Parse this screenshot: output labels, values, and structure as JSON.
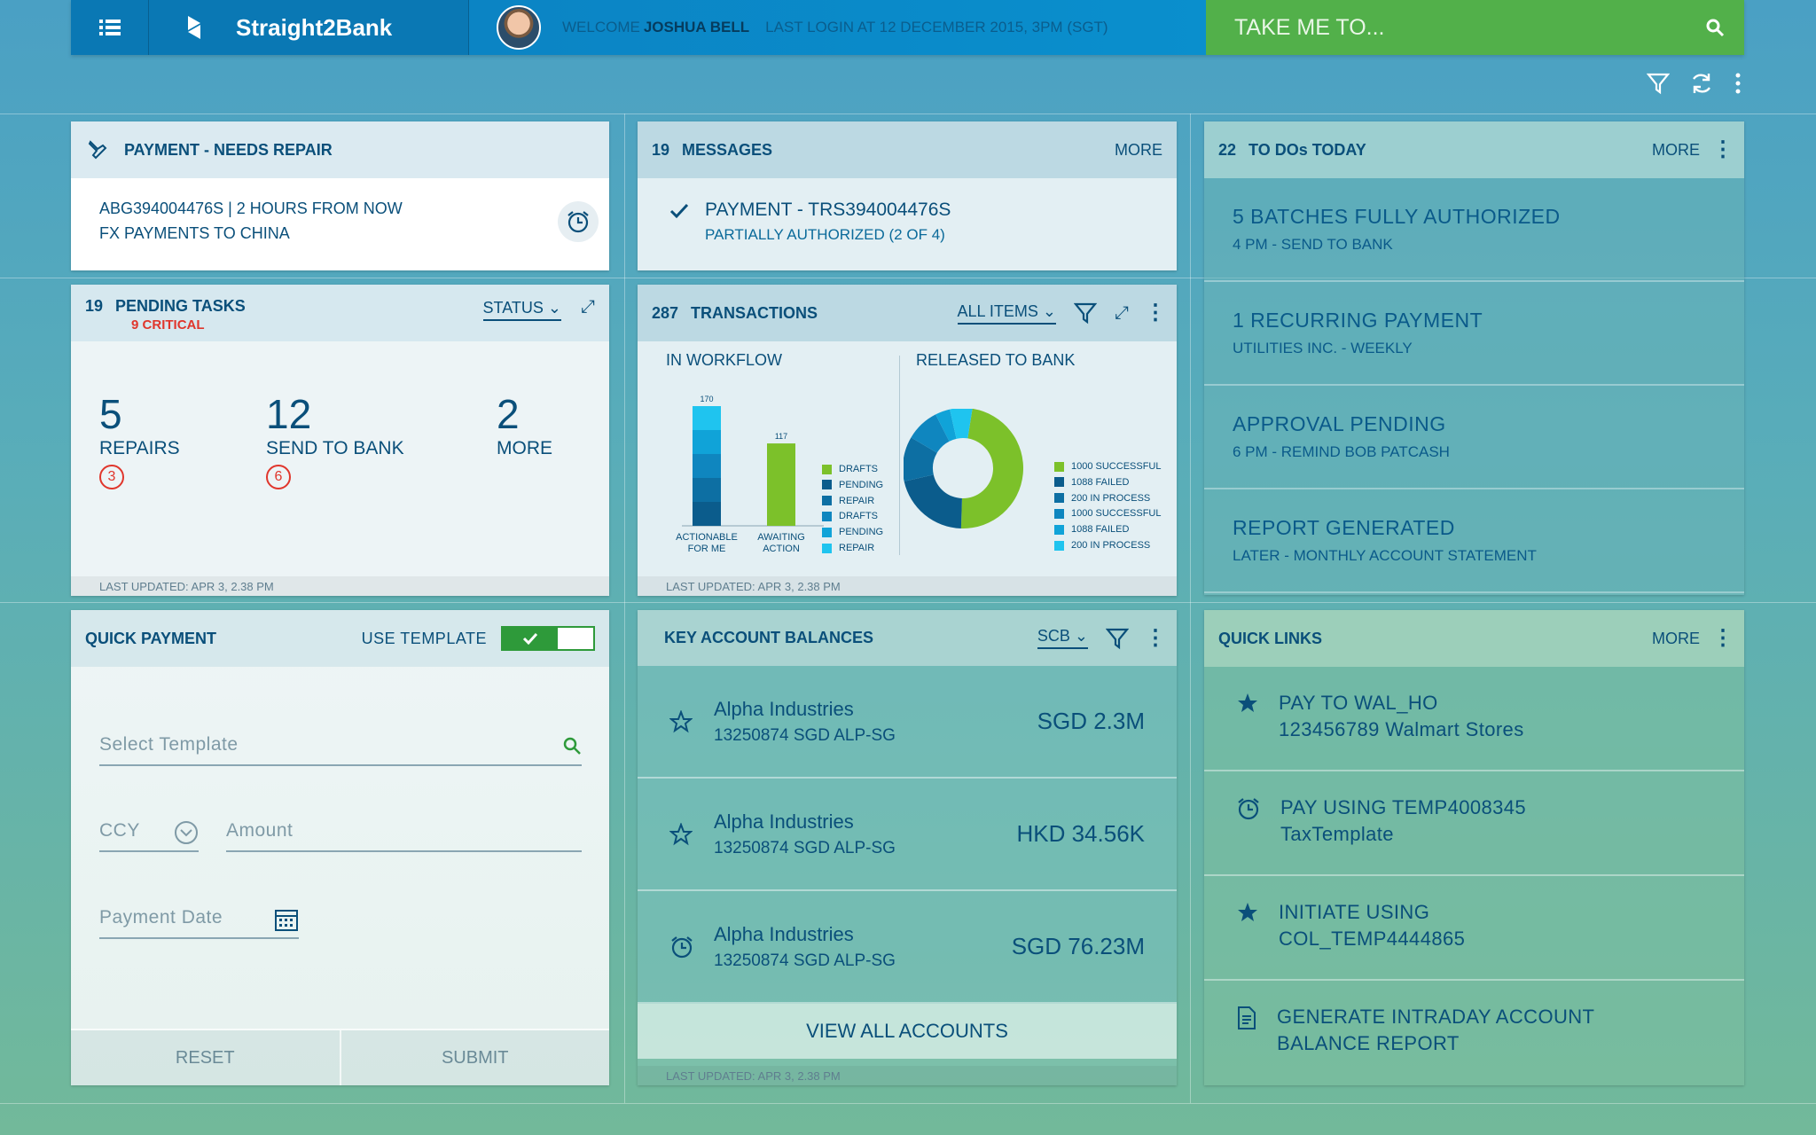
{
  "topbar": {
    "brand": "Straight2Bank",
    "welcome": "WELCOME",
    "user": "JOSHUA BELL",
    "last_login": "LAST LOGIN AT 12 DECEMBER 2015, 3PM (SGT)",
    "search_placeholder": "TAKE ME TO..."
  },
  "repair": {
    "title": "PAYMENT - NEEDS REPAIR",
    "line1": "ABG394004476S | 2 HOURS FROM NOW",
    "line2": "FX PAYMENTS TO CHINA"
  },
  "messages": {
    "count": "19",
    "title": "MESSAGES",
    "more": "MORE",
    "item_title": "PAYMENT - TRS394004476S",
    "item_sub": "PARTIALLY AUTHORIZED (2 OF 4)"
  },
  "todos": {
    "count": "22",
    "title": "TO DOs TODAY",
    "more": "MORE",
    "items": [
      {
        "t1": "5 BATCHES FULLY AUTHORIZED",
        "t2": "4 PM - SEND TO BANK"
      },
      {
        "t1": "1 RECURRING PAYMENT",
        "t2": "UTILITIES INC. - WEEKLY"
      },
      {
        "t1": "APPROVAL PENDING",
        "t2": "6 PM - REMIND BOB PATCASH"
      },
      {
        "t1": "REPORT GENERATED",
        "t2": "LATER - MONTHLY ACCOUNT STATEMENT"
      }
    ]
  },
  "pending": {
    "count": "19",
    "title": "PENDING TASKS",
    "critical": "9 CRITICAL",
    "status": "STATUS",
    "stats": [
      {
        "num": "5",
        "label": "REPAIRS",
        "badge": "3"
      },
      {
        "num": "12",
        "label": "SEND TO BANK",
        "badge": "6"
      },
      {
        "num": "2",
        "label": "MORE",
        "badge": ""
      }
    ],
    "updated": "LAST UPDATED: APR 3, 2.38 PM"
  },
  "transactions": {
    "count": "287",
    "title": "TRANSACTIONS",
    "filter": "ALL ITEMS",
    "workflow_title": "IN WORKFLOW",
    "released_title": "RELEASED TO BANK",
    "updated": "LAST UPDATED: APR 3, 2.38 PM"
  },
  "chart_data": [
    {
      "type": "bar",
      "title": "IN WORKFLOW",
      "categories": [
        "ACTIONABLE FOR ME",
        "AWAITING ACTION"
      ],
      "values": [
        170,
        117
      ],
      "data_labels": [
        "170",
        "117"
      ],
      "legend": [
        {
          "name": "DRAFTS",
          "color": "#7cc12a"
        },
        {
          "name": "PENDING",
          "color": "#0b5c8c"
        },
        {
          "name": "REPAIR",
          "color": "#0d6fa3"
        },
        {
          "name": "DRAFTS",
          "color": "#0f86bf"
        },
        {
          "name": "PENDING",
          "color": "#10a3d8"
        },
        {
          "name": "REPAIR",
          "color": "#1fc4ef"
        }
      ]
    },
    {
      "type": "pie",
      "title": "RELEASED TO BANK",
      "slices": [
        {
          "name": "1000 SUCCESSFUL",
          "value": 48,
          "color": "#7cc12a"
        },
        {
          "name": "1088 FAILED",
          "value": 21,
          "color": "#0b5c8c"
        },
        {
          "name": "200 IN PROCESS",
          "value": 12,
          "color": "#0d6fa3"
        },
        {
          "name": "1000 SUCCESSFUL",
          "value": 9,
          "color": "#0f86bf"
        },
        {
          "name": "1088 FAILED",
          "value": 4,
          "color": "#10a3d8"
        },
        {
          "name": "200 IN PROCESS",
          "value": 6,
          "color": "#1fc4ef"
        }
      ]
    }
  ],
  "quickpay": {
    "title": "QUICK PAYMENT",
    "use_template": "USE TEMPLATE",
    "select_template": "Select Template",
    "ccy": "CCY",
    "amount": "Amount",
    "date": "Payment Date",
    "reset": "RESET",
    "submit": "SUBMIT"
  },
  "balances": {
    "title": "KEY ACCOUNT BALANCES",
    "bank": "SCB",
    "rows": [
      {
        "name": "Alpha Industries",
        "acc": "13250874 SGD ALP-SG",
        "amt": "SGD 2.3M",
        "icon": "star-outline-icon"
      },
      {
        "name": "Alpha Industries",
        "acc": "13250874 SGD ALP-SG",
        "amt": "HKD 34.56K",
        "icon": "star-outline-icon"
      },
      {
        "name": "Alpha Industries",
        "acc": "13250874 SGD ALP-SG",
        "amt": "SGD 76.23M",
        "icon": "alarm-icon"
      }
    ],
    "view_all": "VIEW ALL ACCOUNTS",
    "updated": "LAST UPDATED: APR 3, 2.38 PM"
  },
  "quicklinks": {
    "title": "QUICK LINKS",
    "more": "MORE",
    "items": [
      {
        "l1": "PAY TO WAL_HO",
        "l2": "123456789 Walmart Stores",
        "icon": "star-icon"
      },
      {
        "l1": "PAY USING TEMP4008345",
        "l2": "TaxTemplate",
        "icon": "alarm-icon"
      },
      {
        "l1": "INITIATE USING",
        "l2": "COL_TEMP4444865",
        "icon": "star-icon"
      },
      {
        "l1": "GENERATE INTRADAY ACCOUNT",
        "l2": "BALANCE REPORT",
        "icon": "document-icon"
      }
    ]
  }
}
